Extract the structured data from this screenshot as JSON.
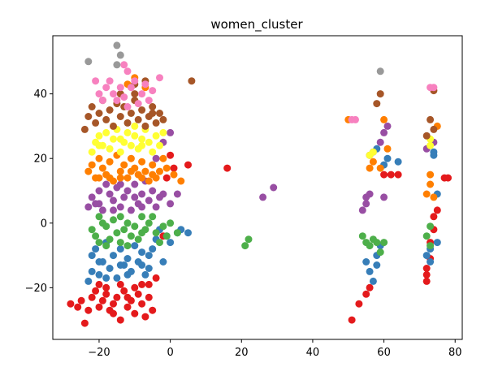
{
  "chart_data": {
    "type": "scatter",
    "title": "women_cluster",
    "xlabel": "",
    "ylabel": "",
    "xlim": [
      -33,
      82
    ],
    "ylim": [
      -36,
      58
    ],
    "xticks": [
      -20,
      0,
      20,
      40,
      60,
      80
    ],
    "yticks": [
      -20,
      0,
      20,
      40
    ],
    "grid": false,
    "legend": "none",
    "series": [
      {
        "color": "#e41a1c",
        "points": [
          [
            -28,
            -25
          ],
          [
            -26,
            -26
          ],
          [
            -25,
            -24
          ],
          [
            -24,
            -31
          ],
          [
            -23,
            -27
          ],
          [
            -22,
            -23
          ],
          [
            -21,
            -21
          ],
          [
            -20,
            -26
          ],
          [
            -19,
            -24
          ],
          [
            -18,
            -22
          ],
          [
            -17,
            -27
          ],
          [
            -16,
            -25
          ],
          [
            -15,
            -23
          ],
          [
            -14,
            -30
          ],
          [
            -13,
            -21
          ],
          [
            -12,
            -26
          ],
          [
            -11,
            -24
          ],
          [
            -10,
            -28
          ],
          [
            -9,
            -22
          ],
          [
            -8,
            -25
          ],
          [
            -7,
            -29
          ],
          [
            -6,
            -19
          ],
          [
            -5,
            -27
          ],
          [
            -4,
            -17
          ],
          [
            -20,
            -19
          ],
          [
            -14,
            -19
          ],
          [
            -8,
            -19
          ],
          [
            -16,
            -28
          ],
          [
            -10,
            -20
          ],
          [
            -18,
            -20
          ],
          [
            -12,
            -23
          ],
          [
            -6,
            -23
          ],
          [
            -2,
            -4
          ],
          [
            -1,
            14
          ],
          [
            0,
            21
          ],
          [
            1,
            17
          ],
          [
            5,
            18
          ],
          [
            16,
            17
          ],
          [
            51,
            -30
          ],
          [
            53,
            -25
          ],
          [
            55,
            -22
          ],
          [
            56,
            -20
          ],
          [
            60,
            15
          ],
          [
            62,
            15
          ],
          [
            64,
            15
          ],
          [
            72,
            -18
          ],
          [
            72,
            -16
          ],
          [
            72,
            -14
          ],
          [
            73,
            -11
          ],
          [
            73,
            -6
          ],
          [
            74,
            -2
          ],
          [
            74,
            2
          ],
          [
            75,
            4
          ],
          [
            77,
            14
          ],
          [
            78,
            14
          ]
        ]
      },
      {
        "color": "#377eb8",
        "points": [
          [
            -23,
            -18
          ],
          [
            -22,
            -15
          ],
          [
            -22,
            -10
          ],
          [
            -21,
            -8
          ],
          [
            -20,
            -16
          ],
          [
            -19,
            -12
          ],
          [
            -18,
            -6
          ],
          [
            -17,
            -14
          ],
          [
            -16,
            -10
          ],
          [
            -15,
            -17
          ],
          [
            -14,
            -8
          ],
          [
            -13,
            -13
          ],
          [
            -12,
            -11
          ],
          [
            -11,
            -15
          ],
          [
            -10,
            -7
          ],
          [
            -9,
            -12
          ],
          [
            -8,
            -9
          ],
          [
            -7,
            -16
          ],
          [
            -6,
            -10
          ],
          [
            -5,
            -8
          ],
          [
            -4,
            -5
          ],
          [
            -3,
            -2
          ],
          [
            -2,
            -12
          ],
          [
            -1,
            -4
          ],
          [
            0,
            -6
          ],
          [
            2,
            -3
          ],
          [
            3,
            -2
          ],
          [
            5,
            -3
          ],
          [
            -18,
            -17
          ],
          [
            -12,
            -16
          ],
          [
            -6,
            -14
          ],
          [
            -20,
            -12
          ],
          [
            -14,
            -13
          ],
          [
            -8,
            -13
          ],
          [
            55,
            -12
          ],
          [
            56,
            -15
          ],
          [
            57,
            -18
          ],
          [
            58,
            -10
          ],
          [
            58,
            -13
          ],
          [
            59,
            -7
          ],
          [
            56,
            21
          ],
          [
            57,
            22
          ],
          [
            58,
            23
          ],
          [
            60,
            18
          ],
          [
            61,
            20
          ],
          [
            64,
            19
          ],
          [
            72,
            -10
          ],
          [
            73,
            -12
          ],
          [
            73,
            -8
          ],
          [
            74,
            21
          ],
          [
            74,
            22
          ],
          [
            75,
            9
          ],
          [
            75,
            -6
          ]
        ]
      },
      {
        "color": "#4daf4a",
        "points": [
          [
            -22,
            -2
          ],
          [
            -21,
            -4
          ],
          [
            -20,
            -6
          ],
          [
            -19,
            0
          ],
          [
            -18,
            -1
          ],
          [
            -17,
            -5
          ],
          [
            -16,
            1
          ],
          [
            -15,
            -3
          ],
          [
            -14,
            -6
          ],
          [
            -13,
            -2
          ],
          [
            -12,
            0
          ],
          [
            -11,
            -4
          ],
          [
            -10,
            -1
          ],
          [
            -9,
            -5
          ],
          [
            -8,
            -3
          ],
          [
            -7,
            -2
          ],
          [
            -6,
            0
          ],
          [
            -5,
            2
          ],
          [
            -4,
            -3
          ],
          [
            -3,
            -6
          ],
          [
            -2,
            -1
          ],
          [
            -1,
            -4
          ],
          [
            0,
            0
          ],
          [
            2,
            -3
          ],
          [
            -20,
            2
          ],
          [
            -14,
            2
          ],
          [
            -8,
            2
          ],
          [
            -18,
            -7
          ],
          [
            -12,
            -7
          ],
          [
            21,
            -7
          ],
          [
            22,
            -5
          ],
          [
            54,
            -4
          ],
          [
            55,
            -6
          ],
          [
            56,
            -7
          ],
          [
            57,
            -5
          ],
          [
            58,
            -6
          ],
          [
            59,
            -9
          ],
          [
            60,
            -6
          ],
          [
            72,
            -4
          ],
          [
            73,
            -7
          ],
          [
            73,
            -1
          ]
        ]
      },
      {
        "color": "#984ea3",
        "points": [
          [
            -23,
            5
          ],
          [
            -22,
            8
          ],
          [
            -21,
            6
          ],
          [
            -20,
            10
          ],
          [
            -19,
            4
          ],
          [
            -18,
            12
          ],
          [
            -17,
            9
          ],
          [
            -16,
            7
          ],
          [
            -15,
            11
          ],
          [
            -14,
            5
          ],
          [
            -13,
            8
          ],
          [
            -12,
            10
          ],
          [
            -11,
            4
          ],
          [
            -10,
            12
          ],
          [
            -9,
            6
          ],
          [
            -8,
            9
          ],
          [
            -7,
            13
          ],
          [
            -6,
            7
          ],
          [
            -5,
            10
          ],
          [
            -4,
            5
          ],
          [
            -3,
            8
          ],
          [
            -2,
            9
          ],
          [
            0,
            6
          ],
          [
            2,
            9
          ],
          [
            -20,
            6
          ],
          [
            -14,
            12
          ],
          [
            -8,
            5
          ],
          [
            -16,
            4
          ],
          [
            -10,
            8
          ],
          [
            -2,
            25
          ],
          [
            0,
            28
          ],
          [
            -4,
            20
          ],
          [
            26,
            8
          ],
          [
            29,
            11
          ],
          [
            54,
            4
          ],
          [
            55,
            6
          ],
          [
            55,
            8
          ],
          [
            56,
            9
          ],
          [
            60,
            8
          ],
          [
            59,
            25
          ],
          [
            60,
            28
          ],
          [
            61,
            30
          ],
          [
            72,
            23
          ],
          [
            74,
            25
          ]
        ]
      },
      {
        "color": "#ff7f00",
        "points": [
          [
            -23,
            16
          ],
          [
            -22,
            18
          ],
          [
            -21,
            14
          ],
          [
            -20,
            20
          ],
          [
            -19,
            17
          ],
          [
            -18,
            15
          ],
          [
            -17,
            19
          ],
          [
            -16,
            13
          ],
          [
            -15,
            21
          ],
          [
            -14,
            16
          ],
          [
            -13,
            18
          ],
          [
            -12,
            14
          ],
          [
            -11,
            20
          ],
          [
            -10,
            17
          ],
          [
            -9,
            15
          ],
          [
            -8,
            19
          ],
          [
            -7,
            16
          ],
          [
            -6,
            13
          ],
          [
            -5,
            18
          ],
          [
            -4,
            14
          ],
          [
            -3,
            16
          ],
          [
            -2,
            20
          ],
          [
            -1,
            17
          ],
          [
            1,
            15
          ],
          [
            3,
            13
          ],
          [
            -20,
            14
          ],
          [
            -14,
            14
          ],
          [
            -8,
            14
          ],
          [
            -17,
            14
          ],
          [
            -11,
            16
          ],
          [
            -5,
            15
          ],
          [
            -12,
            43
          ],
          [
            -10,
            45
          ],
          [
            -7,
            42
          ],
          [
            50,
            32
          ],
          [
            56,
            17
          ],
          [
            56,
            21
          ],
          [
            57,
            19
          ],
          [
            59,
            17
          ],
          [
            60,
            32
          ],
          [
            61,
            23
          ],
          [
            72,
            9
          ],
          [
            73,
            15
          ],
          [
            73,
            12
          ],
          [
            74,
            8
          ],
          [
            75,
            30
          ]
        ]
      },
      {
        "color": "#ffff33",
        "points": [
          [
            -22,
            22
          ],
          [
            -21,
            25
          ],
          [
            -20,
            27
          ],
          [
            -19,
            24
          ],
          [
            -18,
            28
          ],
          [
            -17,
            23
          ],
          [
            -16,
            26
          ],
          [
            -15,
            29
          ],
          [
            -14,
            22
          ],
          [
            -13,
            25
          ],
          [
            -12,
            28
          ],
          [
            -11,
            24
          ],
          [
            -10,
            27
          ],
          [
            -9,
            23
          ],
          [
            -8,
            26
          ],
          [
            -7,
            29
          ],
          [
            -6,
            25
          ],
          [
            -5,
            22
          ],
          [
            -4,
            27
          ],
          [
            -3,
            24
          ],
          [
            -2,
            28
          ],
          [
            -20,
            24
          ],
          [
            -14,
            26
          ],
          [
            -8,
            24
          ],
          [
            -16,
            30
          ],
          [
            -10,
            30
          ],
          [
            56,
            21
          ],
          [
            57,
            22
          ],
          [
            73,
            24
          ],
          [
            73,
            26
          ]
        ]
      },
      {
        "color": "#a65628",
        "points": [
          [
            -24,
            29
          ],
          [
            -23,
            33
          ],
          [
            -22,
            36
          ],
          [
            -21,
            31
          ],
          [
            -20,
            34
          ],
          [
            -19,
            38
          ],
          [
            -18,
            32
          ],
          [
            -17,
            35
          ],
          [
            -16,
            30
          ],
          [
            -15,
            37
          ],
          [
            -14,
            33
          ],
          [
            -13,
            36
          ],
          [
            -12,
            31
          ],
          [
            -11,
            34
          ],
          [
            -10,
            38
          ],
          [
            -9,
            32
          ],
          [
            -8,
            35
          ],
          [
            -7,
            30
          ],
          [
            -6,
            33
          ],
          [
            -5,
            36
          ],
          [
            -4,
            31
          ],
          [
            -3,
            34
          ],
          [
            -2,
            32
          ],
          [
            -10,
            43
          ],
          [
            -7,
            44
          ],
          [
            -5,
            34
          ],
          [
            6,
            44
          ],
          [
            -14,
            40
          ],
          [
            -10,
            40
          ],
          [
            58,
            37
          ],
          [
            59,
            40
          ],
          [
            72,
            27
          ],
          [
            73,
            32
          ],
          [
            74,
            29
          ],
          [
            74,
            41
          ]
        ]
      },
      {
        "color": "#f781bf",
        "points": [
          [
            -21,
            44
          ],
          [
            -20,
            40
          ],
          [
            -19,
            38
          ],
          [
            -18,
            42
          ],
          [
            -17,
            44
          ],
          [
            -16,
            40
          ],
          [
            -15,
            38
          ],
          [
            -14,
            42
          ],
          [
            -13,
            39
          ],
          [
            -12,
            36
          ],
          [
            -11,
            42
          ],
          [
            -10,
            44
          ],
          [
            -9,
            37
          ],
          [
            -8,
            40
          ],
          [
            -7,
            43
          ],
          [
            -6,
            38
          ],
          [
            -5,
            41
          ],
          [
            -3,
            45
          ],
          [
            -13,
            49
          ],
          [
            -12,
            47
          ],
          [
            51,
            32
          ],
          [
            52,
            32
          ],
          [
            73,
            42
          ],
          [
            74,
            42
          ]
        ]
      },
      {
        "color": "#999999",
        "points": [
          [
            -23,
            50
          ],
          [
            -15,
            55
          ],
          [
            -14,
            52
          ],
          [
            -15,
            49
          ],
          [
            59,
            47
          ]
        ]
      }
    ]
  }
}
